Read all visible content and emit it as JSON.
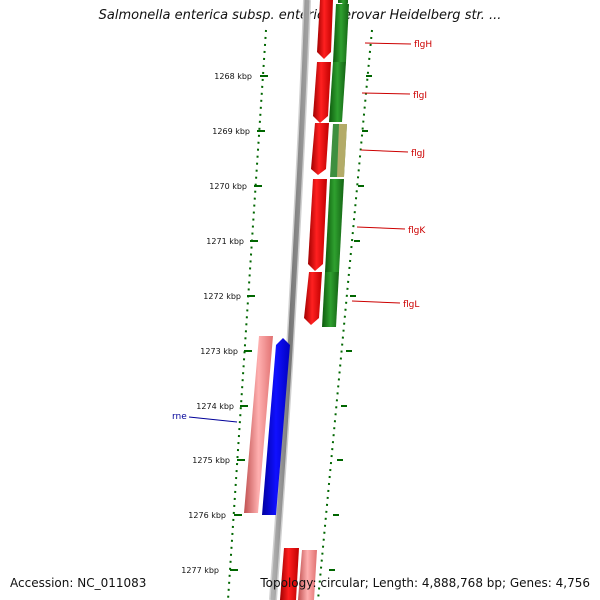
{
  "map": {
    "title": "Salmonella enterica subsp. enterica serovar Heidelberg str. ...",
    "accession": "Accession: NC_011083",
    "summary": "Topology: circular; Length: 4,888,768 bp; Genes: 4,756"
  },
  "kbp_labels": [
    "1268 kbp",
    "1269 kbp",
    "1270 kbp",
    "1271 kbp",
    "1272 kbp",
    "1273 kbp",
    "1274 kbp",
    "1275 kbp",
    "1276 kbp",
    "1277 kbp"
  ],
  "gene_labels": {
    "flgH": "flgH",
    "flgI": "flgI",
    "flgJ": "flgJ",
    "flgK": "flgK",
    "flgL": "flgL",
    "rne": "rne"
  },
  "colors": {
    "forward_cds": "#ee0000",
    "reverse_cds": "#1a8a1a",
    "rna_blue": "#0000ee",
    "pink_feature": "#f08080",
    "backbone": "#888888",
    "tick": "#006600"
  }
}
